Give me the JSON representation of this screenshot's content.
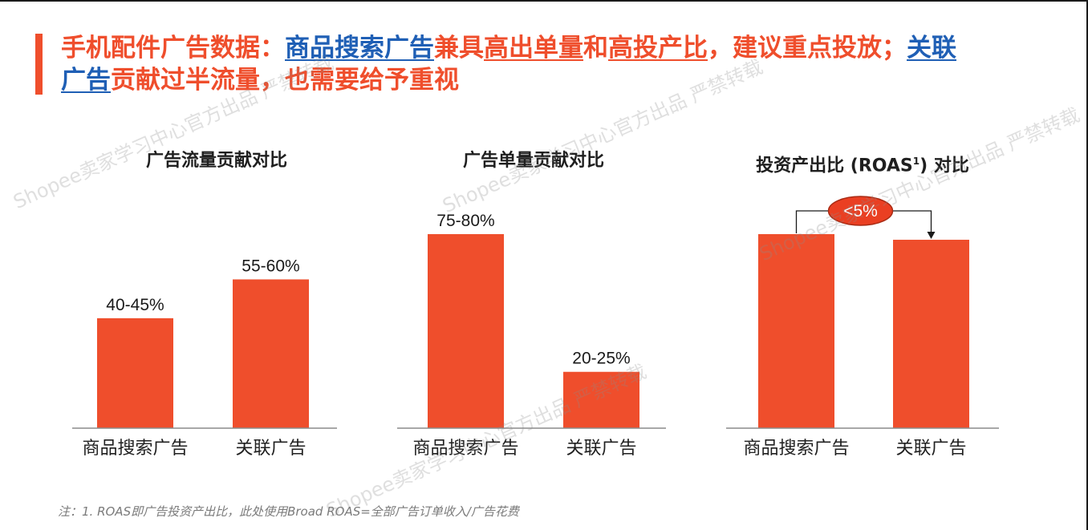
{
  "colors": {
    "accent": "#ef4e2c",
    "bar": "#ef4e2c",
    "title_orange": "#ef4e2c",
    "title_blue": "#1f5fb5",
    "axis": "#8c8c8c"
  },
  "title": {
    "segments": [
      {
        "text": "手机配件广告数据：",
        "style": "plain"
      },
      {
        "text": "商品搜索广告",
        "style": "blue"
      },
      {
        "text": "兼具",
        "style": "plain"
      },
      {
        "text": "高出单量",
        "style": "orange-underline"
      },
      {
        "text": "和",
        "style": "plain"
      },
      {
        "text": "高投产比",
        "style": "orange-underline"
      },
      {
        "text": "，建议重点投放；",
        "style": "plain"
      },
      {
        "text": "关联广告",
        "style": "blue"
      },
      {
        "text": "贡献过半流量，也需要给予重视",
        "style": "plain"
      }
    ]
  },
  "chart_data": [
    {
      "type": "bar",
      "title": "广告流量贡献对比",
      "categories": [
        "商品搜索广告",
        "关联广告"
      ],
      "values": [
        42.5,
        57.5
      ],
      "value_labels": [
        "40-45%",
        "55-60%"
      ],
      "ylim": [
        0,
        75
      ]
    },
    {
      "type": "bar",
      "title": "广告单量贡献对比",
      "categories": [
        "商品搜索广告",
        "关联广告"
      ],
      "values": [
        77.5,
        22.5
      ],
      "value_labels": [
        "75-80%",
        "20-25%"
      ],
      "ylim": [
        0,
        77.5
      ]
    },
    {
      "type": "bar",
      "title_main": "投资产出比 (ROAS",
      "title_sup": "1",
      "title_end": ") 对比",
      "categories": [
        "商品搜索广告",
        "关联广告"
      ],
      "values": [
        100,
        97.1
      ],
      "value_labels": [
        "",
        ""
      ],
      "ylim": [
        0,
        100
      ],
      "annotation": "<5%"
    }
  ],
  "footnote": "注：1. ROAS即广告投资产出比，此处使用Broad ROAS=全部广告订单收入/广告花费",
  "watermark": "Shopee卖家学习中心官方出品 严禁转载"
}
